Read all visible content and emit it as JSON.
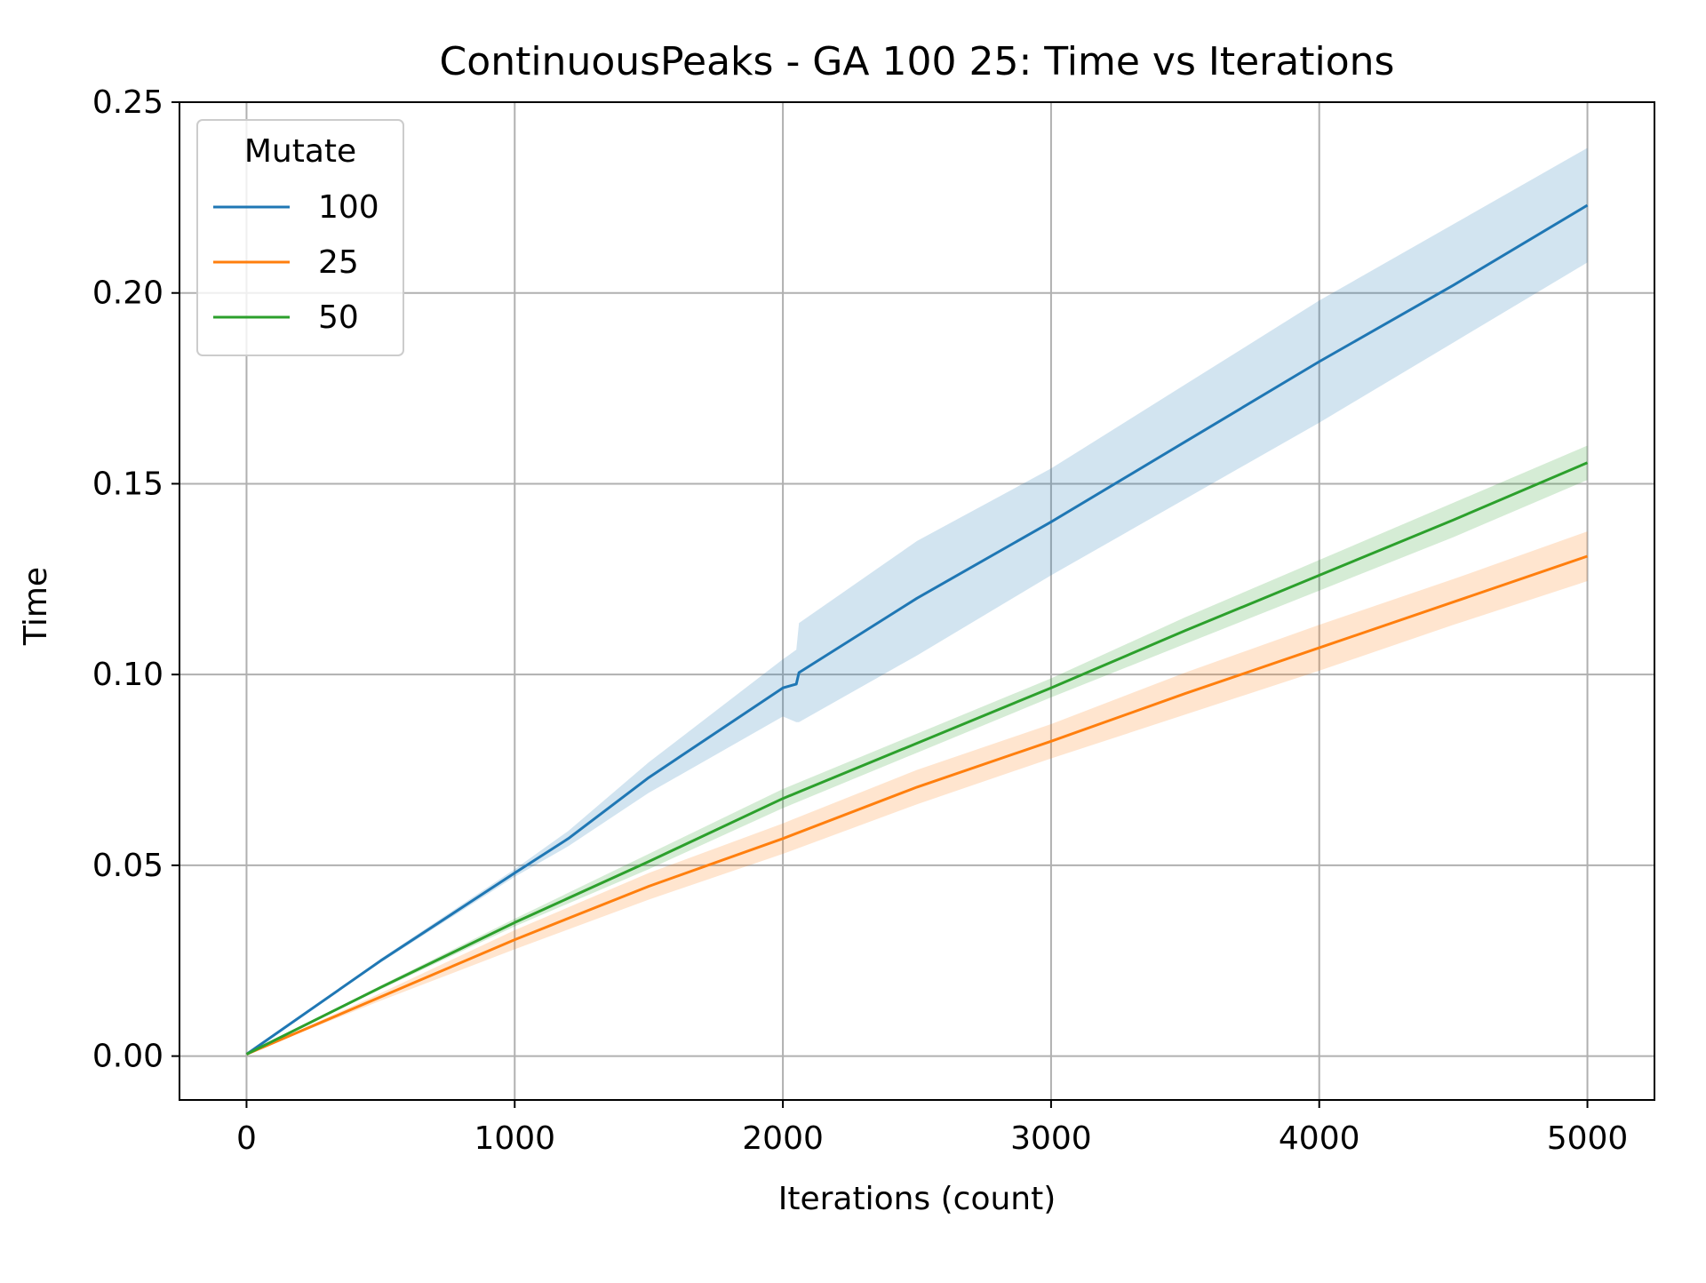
{
  "chart_data": {
    "type": "line",
    "title": "ContinuousPeaks - GA 100 25: Time vs Iterations",
    "xlabel": "Iterations (count)",
    "ylabel": "Time",
    "xlim": [
      -250,
      5250
    ],
    "ylim": [
      -0.0115,
      0.25
    ],
    "xticks": [
      0,
      1000,
      2000,
      3000,
      4000,
      5000
    ],
    "xtick_labels": [
      "0",
      "1000",
      "2000",
      "3000",
      "4000",
      "5000"
    ],
    "yticks": [
      0.0,
      0.05,
      0.1,
      0.15,
      0.2,
      0.25
    ],
    "ytick_labels": [
      "0.00",
      "0.05",
      "0.10",
      "0.15",
      "0.20",
      "0.25"
    ],
    "grid": true,
    "legend": {
      "title": "Mutate",
      "placement": "top-left"
    },
    "series": [
      {
        "name": "100",
        "color": "#1f77b4",
        "points": [
          [
            0,
            0.0005,
            0.0005,
            0.0005
          ],
          [
            500,
            0.025,
            0.0245,
            0.0255
          ],
          [
            1000,
            0.048,
            0.047,
            0.049
          ],
          [
            1200,
            0.057,
            0.055,
            0.059
          ],
          [
            1500,
            0.073,
            0.069,
            0.077
          ],
          [
            2000,
            0.0965,
            0.089,
            0.104
          ],
          [
            2050,
            0.0975,
            0.0875,
            0.1065
          ],
          [
            2060,
            0.1005,
            0.0875,
            0.1135
          ],
          [
            2500,
            0.12,
            0.105,
            0.135
          ],
          [
            3000,
            0.14,
            0.126,
            0.154
          ],
          [
            3500,
            0.161,
            0.146,
            0.176
          ],
          [
            4000,
            0.182,
            0.166,
            0.198
          ],
          [
            4500,
            0.202,
            0.187,
            0.218
          ],
          [
            5000,
            0.223,
            0.208,
            0.238
          ]
        ]
      },
      {
        "name": "25",
        "color": "#ff7f0e",
        "points": [
          [
            0,
            0.0005,
            0.0005,
            0.0005
          ],
          [
            500,
            0.0155,
            0.0145,
            0.0165
          ],
          [
            1000,
            0.0305,
            0.028,
            0.033
          ],
          [
            1500,
            0.0445,
            0.041,
            0.048
          ],
          [
            2000,
            0.057,
            0.053,
            0.061
          ],
          [
            2500,
            0.0705,
            0.066,
            0.075
          ],
          [
            3000,
            0.0825,
            0.078,
            0.087
          ],
          [
            3500,
            0.095,
            0.0895,
            0.1005
          ],
          [
            4000,
            0.107,
            0.101,
            0.113
          ],
          [
            4500,
            0.119,
            0.113,
            0.125
          ],
          [
            5000,
            0.131,
            0.1245,
            0.1375
          ]
        ]
      },
      {
        "name": "50",
        "color": "#2ca02c",
        "points": [
          [
            0,
            0.0005,
            0.0005,
            0.0005
          ],
          [
            500,
            0.018,
            0.0175,
            0.0185
          ],
          [
            1000,
            0.035,
            0.034,
            0.036
          ],
          [
            1500,
            0.051,
            0.049,
            0.053
          ],
          [
            2000,
            0.0675,
            0.065,
            0.07
          ],
          [
            2500,
            0.082,
            0.0795,
            0.0845
          ],
          [
            3000,
            0.0965,
            0.094,
            0.099
          ],
          [
            3500,
            0.1115,
            0.108,
            0.115
          ],
          [
            4000,
            0.126,
            0.122,
            0.13
          ],
          [
            4500,
            0.1405,
            0.136,
            0.145
          ],
          [
            5000,
            0.1555,
            0.151,
            0.16
          ]
        ]
      }
    ]
  }
}
